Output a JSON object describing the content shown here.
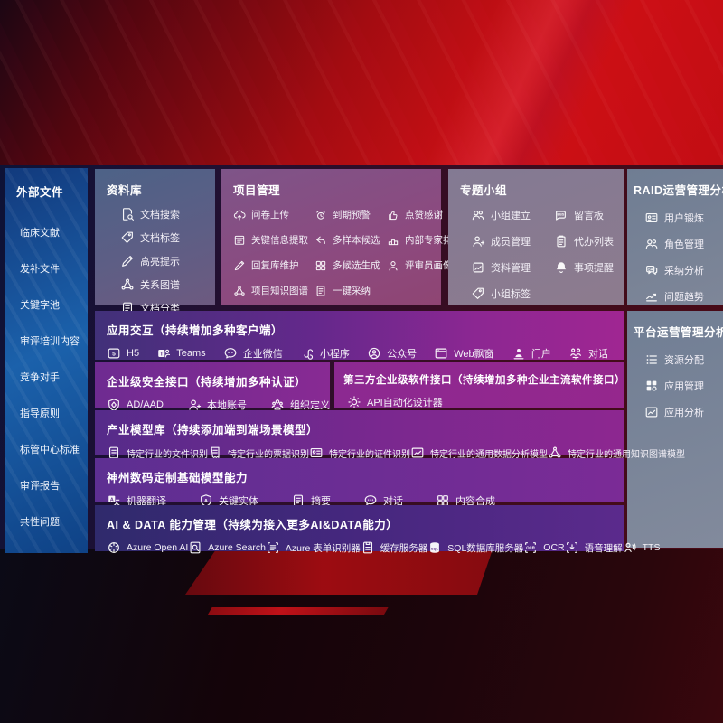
{
  "colors": {
    "background_red": "#c30d13",
    "sidebar_blue": "#1b61ab",
    "card_slate": "#5d6e8c",
    "card_mauve": "#8c4a7f",
    "card_gray": "#7e8698",
    "row_purple": "#7a288f",
    "row_indigo": "#2f2a6c",
    "text": "#ffffff"
  },
  "sidebar": {
    "title": "外部文件",
    "items": [
      "临床文献",
      "发补文件",
      "关键字池",
      "审评培训内容",
      "竞争对手",
      "指导原则",
      "标管中心标准",
      "审评报告",
      "共性问题"
    ]
  },
  "panels": {
    "repository": {
      "title": "资料库",
      "items": [
        {
          "icon": "doc-search",
          "label": "文档搜索"
        },
        {
          "icon": "tag",
          "label": "文档标签"
        },
        {
          "icon": "pencil",
          "label": "高亮提示"
        },
        {
          "icon": "graph",
          "label": "关系图谱"
        },
        {
          "icon": "doc",
          "label": "文档分类"
        }
      ]
    },
    "project": {
      "title": "项目管理",
      "items": [
        {
          "icon": "cloud-upload",
          "label": "问卷上传"
        },
        {
          "icon": "alarm",
          "label": "到期预警"
        },
        {
          "icon": "thumbs-up",
          "label": "点赞感谢"
        },
        {
          "icon": "doc-extract",
          "label": "关键信息提取"
        },
        {
          "icon": "reply-arrow",
          "label": "多样本候选"
        },
        {
          "icon": "ranking",
          "label": "内部专家排名"
        },
        {
          "icon": "pencil",
          "label": "回复库维护"
        },
        {
          "icon": "grid",
          "label": "多候选生成"
        },
        {
          "icon": "person",
          "label": "评审员画像"
        },
        {
          "icon": "graph",
          "label": "项目知识图谱"
        },
        {
          "icon": "adopt-arrow",
          "label": "一键采纳"
        }
      ]
    },
    "groups": {
      "title": "专题小组",
      "items": [
        {
          "icon": "people",
          "label": "小组建立"
        },
        {
          "icon": "bbs",
          "label": "留言板"
        },
        {
          "icon": "person-add",
          "label": "成员管理"
        },
        {
          "icon": "clipboard",
          "label": "代办列表"
        },
        {
          "icon": "album",
          "label": "资料管理"
        },
        {
          "icon": "bell",
          "label": "事项提醒"
        },
        {
          "icon": "tag",
          "label": "小组标签"
        }
      ]
    },
    "raid": {
      "title": "RAID运营管理分析",
      "items": [
        {
          "icon": "id-card",
          "label": "用户锻炼"
        },
        {
          "icon": "people",
          "label": "角色管理"
        },
        {
          "icon": "qa-chat",
          "label": "采纳分析"
        },
        {
          "icon": "trend-chart",
          "label": "问题趋势"
        }
      ]
    },
    "platform": {
      "title": "平台运营管理分析",
      "items": [
        {
          "icon": "dot-list",
          "label": "资源分配"
        },
        {
          "icon": "app-grid",
          "label": "应用管理"
        },
        {
          "icon": "chart-box",
          "label": "应用分析"
        }
      ]
    }
  },
  "rows": {
    "interaction": {
      "title": "应用交互（持续增加多种客户端）",
      "items": [
        {
          "icon": "h5",
          "label": "H5"
        },
        {
          "icon": "teams",
          "label": "Teams"
        },
        {
          "icon": "chat-bubble",
          "label": "企业微信"
        },
        {
          "icon": "miniprogram",
          "label": "小程序"
        },
        {
          "icon": "official-account",
          "label": "公众号"
        },
        {
          "icon": "web-window",
          "label": "Web飘窗"
        },
        {
          "icon": "portal",
          "label": "门户"
        },
        {
          "icon": "dialog-people",
          "label": "对话"
        }
      ]
    },
    "security": {
      "title": "企业级安全接口（持续增加多种认证）",
      "items": [
        {
          "icon": "shield-diamond",
          "label": "AD/AAD"
        },
        {
          "icon": "person-add",
          "label": "本地账号"
        },
        {
          "icon": "org-people",
          "label": "组织定义"
        }
      ]
    },
    "thirdparty": {
      "title": "第三方企业级软件接口（持续增加多种企业主流软件接口）",
      "items": [
        {
          "icon": "api-gear",
          "label": "API自动化设计器"
        }
      ]
    },
    "industry": {
      "title": "产业模型库（持续添加端到端场景模型）",
      "items": [
        {
          "icon": "doc",
          "label": "特定行业的文件识别"
        },
        {
          "icon": "receipt",
          "label": "特定行业的票据识别"
        },
        {
          "icon": "id-card",
          "label": "特定行业的证件识别"
        },
        {
          "icon": "chart-box",
          "label": "特定行业的通用数据分析模型"
        },
        {
          "icon": "graph",
          "label": "特定行业的通用知识图谱模型"
        }
      ]
    },
    "basemodels": {
      "title": "神州数码定制基础模型能力",
      "items": [
        {
          "icon": "translate",
          "label": "机器翻译"
        },
        {
          "icon": "shield-a",
          "label": "关键实体"
        },
        {
          "icon": "doc",
          "label": "摘要"
        },
        {
          "icon": "chat-dots",
          "label": "对话"
        },
        {
          "icon": "grid",
          "label": "内容合成"
        }
      ]
    },
    "aidata": {
      "title": "AI & DATA 能力管理（持续为接入更多AI&DATA能力）",
      "items": [
        {
          "icon": "openai",
          "label": "Azure Open AI"
        },
        {
          "icon": "azure-search",
          "label": "Azure Search"
        },
        {
          "icon": "scan-frame",
          "label": "Azure 表单识别器"
        },
        {
          "icon": "cache-server",
          "label": "缓存服务器"
        },
        {
          "icon": "sql-db",
          "label": "SQL数据库服务器"
        },
        {
          "icon": "ocr-scan",
          "label": "OCR"
        },
        {
          "icon": "speech-scan",
          "label": "语音理解"
        },
        {
          "icon": "tts-voice",
          "label": "TTS"
        }
      ]
    }
  }
}
